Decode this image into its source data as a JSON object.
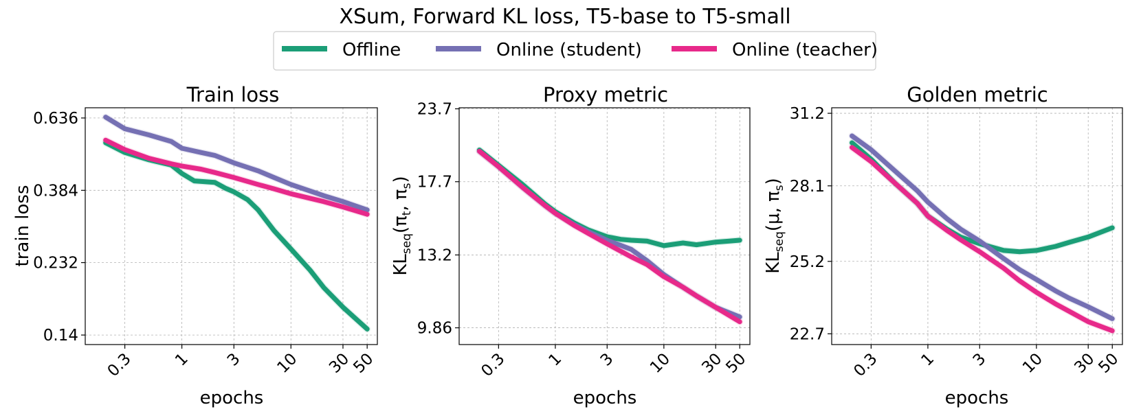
{
  "figure": {
    "title": "XSum, Forward KL loss, T5-base to T5-small",
    "legend": [
      {
        "name": "Offline",
        "color": "#1b9e77"
      },
      {
        "name": "Online (student)",
        "color": "#7570b3"
      },
      {
        "name": "Online (teacher)",
        "color": "#e7298a"
      }
    ]
  },
  "chart_data": [
    {
      "type": "line",
      "title": "Train loss",
      "xlabel": "epochs",
      "ylabel": "train loss",
      "xscale": "log",
      "xlim": [
        0.13,
        62
      ],
      "xticks": [
        0.3,
        1,
        3,
        10,
        30,
        50
      ],
      "xticklabels": [
        "0.3",
        "1",
        "3",
        "10",
        "30",
        "50"
      ],
      "ylim": [
        0.131,
        0.683
      ],
      "yticks": [
        0.14,
        0.232,
        0.384,
        0.636
      ],
      "yticklabels": [
        "0.14",
        "0.232",
        "0.384",
        "0.636"
      ],
      "series": [
        {
          "name": "Offline",
          "color": "#1b9e77",
          "x": [
            0.2,
            0.3,
            0.5,
            0.8,
            1.0,
            1.3,
            2.0,
            2.5,
            3.0,
            4.0,
            5.0,
            7.0,
            10.0,
            15.0,
            20.0,
            30.0,
            40.0,
            50.0
          ],
          "y": [
            0.535,
            0.5,
            0.475,
            0.458,
            0.432,
            0.41,
            0.406,
            0.39,
            0.38,
            0.36,
            0.335,
            0.29,
            0.255,
            0.22,
            0.195,
            0.17,
            0.156,
            0.146
          ]
        },
        {
          "name": "Online (student)",
          "color": "#7570b3",
          "x": [
            0.2,
            0.3,
            0.5,
            0.8,
            1.0,
            1.5,
            2.0,
            3.0,
            5.0,
            7.0,
            10.0,
            20.0,
            30.0,
            50.0
          ],
          "y": [
            0.64,
            0.59,
            0.565,
            0.54,
            0.515,
            0.5,
            0.49,
            0.465,
            0.44,
            0.42,
            0.4,
            0.37,
            0.355,
            0.335
          ]
        },
        {
          "name": "Online (teacher)",
          "color": "#e7298a",
          "x": [
            0.2,
            0.3,
            0.5,
            0.8,
            1.0,
            1.5,
            2.0,
            3.0,
            5.0,
            7.0,
            10.0,
            20.0,
            30.0,
            50.0
          ],
          "y": [
            0.545,
            0.51,
            0.48,
            0.462,
            0.455,
            0.445,
            0.435,
            0.42,
            0.4,
            0.388,
            0.375,
            0.355,
            0.342,
            0.325
          ]
        }
      ]
    },
    {
      "type": "line",
      "title": "Proxy metric",
      "xlabel": "epochs",
      "ylabel": "KL_seq(π_t, π_s)",
      "xscale": "log",
      "xlim": [
        0.13,
        62
      ],
      "xticks": [
        0.3,
        1,
        3,
        10,
        30,
        50
      ],
      "xticklabels": [
        "0.3",
        "1",
        "3",
        "10",
        "30",
        "50"
      ],
      "ylim": [
        9.22,
        23.8
      ],
      "yticks": [
        9.86,
        13.2,
        17.7,
        23.7
      ],
      "yticklabels": [
        "9.86",
        "13.2",
        "17.7",
        "23.7"
      ],
      "series": [
        {
          "name": "Offline",
          "color": "#1b9e77",
          "x": [
            0.2,
            0.3,
            0.5,
            0.8,
            1.0,
            1.5,
            2.0,
            3.0,
            4.0,
            5.0,
            7.0,
            10.0,
            15.0,
            20.0,
            30.0,
            40.0,
            50.0
          ],
          "y": [
            20.1,
            18.9,
            17.5,
            16.2,
            15.7,
            15.0,
            14.6,
            14.2,
            14.05,
            14.0,
            13.95,
            13.7,
            13.85,
            13.75,
            13.9,
            13.95,
            14.0
          ]
        },
        {
          "name": "Online (student)",
          "color": "#7570b3",
          "x": [
            0.2,
            0.3,
            0.5,
            0.8,
            1.0,
            1.5,
            2.0,
            3.0,
            5.0,
            7.0,
            10.0,
            15.0,
            20.0,
            30.0,
            50.0
          ],
          "y": [
            20.0,
            18.8,
            17.3,
            16.1,
            15.6,
            14.9,
            14.5,
            14.0,
            13.5,
            12.9,
            12.2,
            11.6,
            11.2,
            10.7,
            10.3
          ]
        },
        {
          "name": "Online (teacher)",
          "color": "#e7298a",
          "x": [
            0.2,
            0.3,
            0.5,
            0.8,
            1.0,
            1.5,
            2.0,
            3.0,
            5.0,
            7.0,
            10.0,
            15.0,
            20.0,
            30.0,
            50.0
          ],
          "y": [
            20.0,
            18.8,
            17.3,
            16.1,
            15.6,
            14.85,
            14.4,
            13.8,
            13.1,
            12.7,
            12.1,
            11.6,
            11.2,
            10.7,
            10.1
          ]
        }
      ]
    },
    {
      "type": "line",
      "title": "Golden metric",
      "xlabel": "epochs",
      "ylabel": "KL_seq(μ, π_s)",
      "xscale": "log",
      "xlim": [
        0.13,
        62
      ],
      "xticks": [
        0.3,
        1,
        3,
        10,
        30,
        50
      ],
      "xticklabels": [
        "0.3",
        "1",
        "3",
        "10",
        "30",
        "50"
      ],
      "ylim": [
        22.35,
        31.45
      ],
      "yticks": [
        22.7,
        25.2,
        28.1,
        31.2
      ],
      "yticklabels": [
        "22.7",
        "25.2",
        "28.1",
        "31.2"
      ],
      "series": [
        {
          "name": "Offline",
          "color": "#1b9e77",
          "x": [
            0.2,
            0.3,
            0.5,
            0.8,
            1.0,
            1.5,
            2.0,
            3.0,
            5.0,
            7.0,
            10.0,
            15.0,
            20.0,
            30.0,
            50.0
          ],
          "y": [
            29.9,
            29.2,
            28.2,
            27.4,
            26.9,
            26.4,
            26.1,
            25.85,
            25.6,
            25.55,
            25.6,
            25.75,
            25.9,
            26.1,
            26.45
          ]
        },
        {
          "name": "Online (student)",
          "color": "#7570b3",
          "x": [
            0.2,
            0.3,
            0.5,
            0.8,
            1.0,
            1.5,
            2.0,
            3.0,
            5.0,
            7.0,
            10.0,
            15.0,
            20.0,
            30.0,
            50.0
          ],
          "y": [
            30.2,
            29.6,
            28.7,
            27.9,
            27.45,
            26.8,
            26.4,
            25.95,
            25.3,
            24.9,
            24.55,
            24.15,
            23.9,
            23.6,
            23.2
          ]
        },
        {
          "name": "Online (teacher)",
          "color": "#e7298a",
          "x": [
            0.2,
            0.3,
            0.5,
            0.8,
            1.0,
            1.5,
            2.0,
            3.0,
            5.0,
            7.0,
            10.0,
            15.0,
            20.0,
            30.0,
            50.0
          ],
          "y": [
            29.7,
            29.1,
            28.2,
            27.4,
            26.9,
            26.35,
            26.0,
            25.55,
            24.95,
            24.5,
            24.1,
            23.7,
            23.45,
            23.1,
            22.8
          ]
        }
      ]
    }
  ]
}
